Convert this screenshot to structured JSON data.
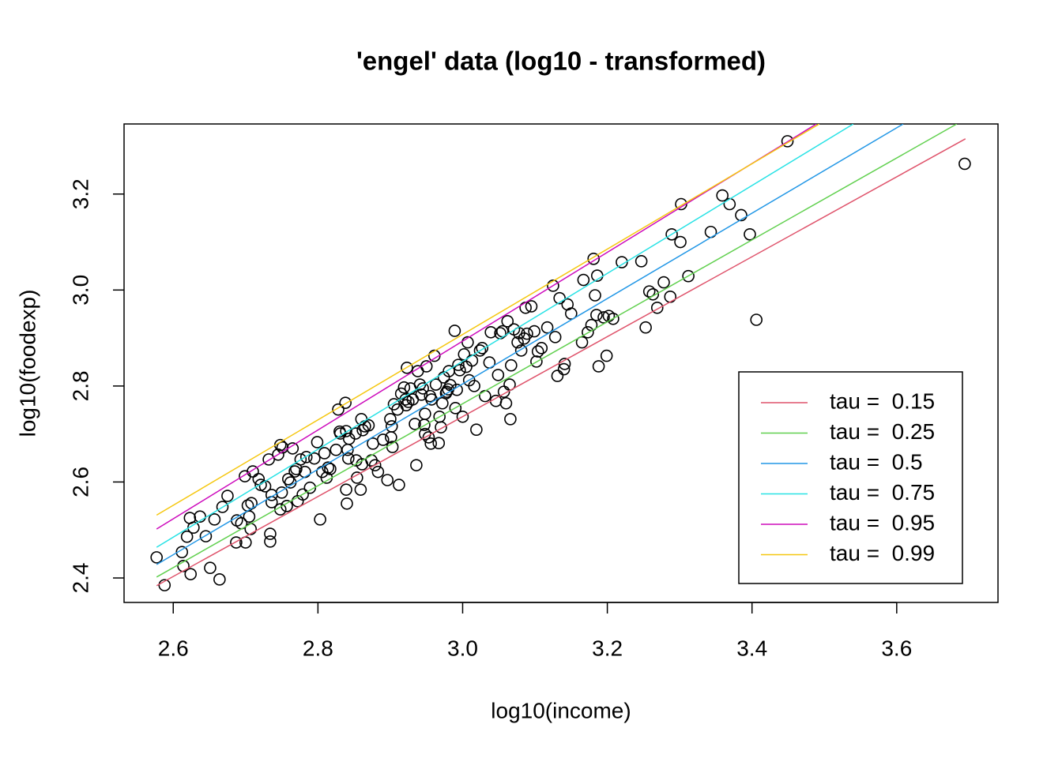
{
  "chart_data": {
    "type": "scatter",
    "title": "'engel' data (log10 - transformed)",
    "x_label": "log10(income)",
    "y_label": "log10(foodexp)",
    "xlim": [
      2.532,
      3.74
    ],
    "ylim": [
      2.349,
      3.346
    ],
    "xticks": [
      2.6,
      2.8,
      {
        "value": 3,
        "label": "3.0"
      },
      3.2,
      3.4,
      3.6
    ],
    "yticks": [
      2.4,
      2.6,
      2.8,
      {
        "value": 3,
        "label": "3.0"
      },
      3.2
    ],
    "legend": "bottomright",
    "points": {
      "color": "#000000",
      "x": [
        2.577,
        2.588,
        2.612,
        2.614,
        2.619,
        2.623,
        2.624,
        2.628,
        2.637,
        2.645,
        2.651,
        2.657,
        2.664,
        2.668,
        2.675,
        2.687,
        2.688,
        2.694,
        2.699,
        2.7,
        2.703,
        2.705,
        2.708,
        2.707,
        2.71,
        2.718,
        2.721,
        2.727,
        2.732,
        2.734,
        2.734,
        2.736,
        2.736,
        2.745,
        2.748,
        2.751,
        2.75,
        2.748,
        2.757,
        2.759,
        2.762,
        2.765,
        2.768,
        2.77,
        2.772,
        2.776,
        2.779,
        2.782,
        2.784,
        2.789,
        2.795,
        2.799,
        2.803,
        2.806,
        2.809,
        2.812,
        2.814,
        2.817,
        2.825,
        2.828,
        2.83,
        2.831,
        2.838,
        2.839,
        2.839,
        2.84,
        2.841,
        2.842,
        2.843,
        2.852,
        2.853,
        2.854,
        2.859,
        2.86,
        2.861,
        2.862,
        2.865,
        2.87,
        2.874,
        2.876,
        2.879,
        2.883,
        2.89,
        2.896,
        2.9,
        2.901,
        2.902,
        2.903,
        2.905,
        2.91,
        2.912,
        2.915,
        2.919,
        2.921,
        2.922,
        2.923,
        2.925,
        2.928,
        2.931,
        2.934,
        2.936,
        2.938,
        2.941,
        2.943,
        2.945,
        2.947,
        2.948,
        2.948,
        2.95,
        2.953,
        2.955,
        2.956,
        2.957,
        2.961,
        2.963,
        2.967,
        2.968,
        2.97,
        2.972,
        2.974,
        2.977,
        2.978,
        2.98,
        2.981,
        2.983,
        2.989,
        2.99,
        2.992,
        2.994,
        2.996,
        3.0,
        3.002,
        3.005,
        3.007,
        3.009,
        3.013,
        3.016,
        3.019,
        3.024,
        3.027,
        3.031,
        3.037,
        3.039,
        3.046,
        3.049,
        3.052,
        3.055,
        3.057,
        3.06,
        3.062,
        3.065,
        3.066,
        3.067,
        3.071,
        3.076,
        3.078,
        3.081,
        3.085,
        3.087,
        3.089,
        3.095,
        3.099,
        3.102,
        3.104,
        3.109,
        3.117,
        3.125,
        3.128,
        3.131,
        3.134,
        3.14,
        3.141,
        3.145,
        3.15,
        3.165,
        3.167,
        3.173,
        3.178,
        3.181,
        3.183,
        3.185,
        3.186,
        3.188,
        3.195,
        3.199,
        3.202,
        3.208,
        3.22,
        3.247,
        3.253,
        3.258,
        3.263,
        3.269,
        3.278,
        3.287,
        3.289,
        3.301,
        3.302,
        3.312,
        3.343,
        3.359,
        3.369,
        3.385,
        3.397,
        3.406,
        3.449,
        3.694
      ],
      "values": [
        2.443,
        2.385,
        2.454,
        2.425,
        2.486,
        2.525,
        2.408,
        2.505,
        2.528,
        2.487,
        2.421,
        2.522,
        2.397,
        2.548,
        2.571,
        2.474,
        2.52,
        2.514,
        2.612,
        2.474,
        2.551,
        2.528,
        2.556,
        2.502,
        2.622,
        2.606,
        2.594,
        2.591,
        2.647,
        2.492,
        2.476,
        2.558,
        2.573,
        2.657,
        2.677,
        2.672,
        2.578,
        2.543,
        2.55,
        2.606,
        2.599,
        2.67,
        2.622,
        2.627,
        2.56,
        2.647,
        2.574,
        2.621,
        2.652,
        2.588,
        2.649,
        2.683,
        2.522,
        2.621,
        2.66,
        2.609,
        2.63,
        2.627,
        2.667,
        2.751,
        2.705,
        2.701,
        2.765,
        2.706,
        2.584,
        2.555,
        2.667,
        2.649,
        2.69,
        2.701,
        2.645,
        2.609,
        2.584,
        2.731,
        2.637,
        2.708,
        2.716,
        2.718,
        2.645,
        2.68,
        2.635,
        2.621,
        2.688,
        2.604,
        2.731,
        2.693,
        2.716,
        2.673,
        2.762,
        2.751,
        2.594,
        2.784,
        2.797,
        2.772,
        2.76,
        2.838,
        2.767,
        2.795,
        2.772,
        2.721,
        2.635,
        2.831,
        2.803,
        2.782,
        2.795,
        2.719,
        2.742,
        2.7,
        2.841,
        2.693,
        2.779,
        2.68,
        2.772,
        2.863,
        2.803,
        2.681,
        2.736,
        2.714,
        2.764,
        2.818,
        2.785,
        2.788,
        2.793,
        2.831,
        2.802,
        2.915,
        2.754,
        2.792,
        2.844,
        2.833,
        2.736,
        2.866,
        2.84,
        2.891,
        2.812,
        2.853,
        2.8,
        2.709,
        2.874,
        2.879,
        2.779,
        2.849,
        2.912,
        2.769,
        2.823,
        2.91,
        2.914,
        2.788,
        2.764,
        2.935,
        2.803,
        2.731,
        2.843,
        2.918,
        2.891,
        2.91,
        2.874,
        2.899,
        2.963,
        2.909,
        2.966,
        2.914,
        2.851,
        2.872,
        2.879,
        2.922,
        3.009,
        2.902,
        2.821,
        2.983,
        2.835,
        2.846,
        2.97,
        2.951,
        2.891,
        3.021,
        2.912,
        2.927,
        3.065,
        2.989,
        2.948,
        3.03,
        2.841,
        2.943,
        2.863,
        2.946,
        2.94,
        3.058,
        3.06,
        2.922,
        2.997,
        2.991,
        2.963,
        3.016,
        2.986,
        3.116,
        3.1,
        3.179,
        3.029,
        3.121,
        3.197,
        3.179,
        3.156,
        3.116,
        2.938,
        3.31,
        3.263
      ]
    },
    "lines": [
      {
        "name": "tau =  0.15",
        "color": "#DF536B",
        "x": [
          2.577,
          3.695
        ],
        "values": [
          2.384,
          3.315
        ]
      },
      {
        "name": "tau =  0.25",
        "color": "#61D04F",
        "x": [
          2.577,
          3.683
        ],
        "values": [
          2.402,
          3.346
        ]
      },
      {
        "name": "tau =  0.5",
        "color": "#2297E6",
        "x": [
          2.577,
          3.609
        ],
        "values": [
          2.428,
          3.346
        ]
      },
      {
        "name": "tau =  0.75",
        "color": "#28E2E5",
        "x": [
          2.577,
          3.54
        ],
        "values": [
          2.464,
          3.346
        ]
      },
      {
        "name": "tau =  0.95",
        "color": "#CD0BBC",
        "x": [
          2.577,
          3.489
        ],
        "values": [
          2.502,
          3.346
        ]
      },
      {
        "name": "tau =  0.99",
        "color": "#F5C710",
        "x": [
          2.577,
          3.493
        ],
        "values": [
          2.531,
          3.346
        ]
      }
    ]
  }
}
